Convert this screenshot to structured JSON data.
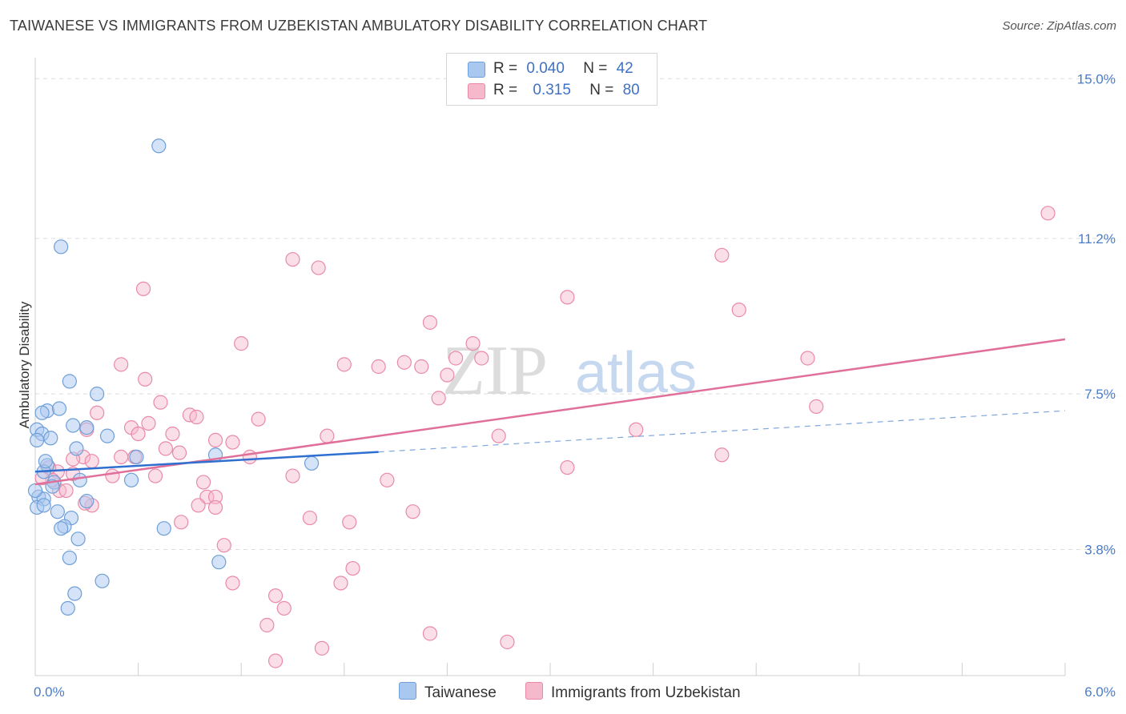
{
  "title": "TAIWANESE VS IMMIGRANTS FROM UZBEKISTAN AMBULATORY DISABILITY CORRELATION CHART",
  "source": "Source: ZipAtlas.com",
  "watermark": {
    "zip": "ZIP",
    "atlas": "atlas"
  },
  "colors": {
    "blue_fill": "#a9c8f0",
    "blue_stroke": "#6e9fd8",
    "blue_line": "#2f6fd0",
    "pink_fill": "#f6b9cc",
    "pink_stroke": "#e98aa8",
    "pink_line": "#e0709a",
    "tick_text": "#4a7cc9",
    "grid": "#dddddd"
  },
  "legend": {
    "rows": [
      {
        "r_label": "R =",
        "r_value": "0.040",
        "n_label": "N =",
        "n_value": "42"
      },
      {
        "r_label": "R =",
        "r_value": "0.315",
        "n_label": "N =",
        "n_value": "80"
      }
    ]
  },
  "bottom_legend": {
    "series1": "Taiwanese",
    "series2": "Immigrants from Uzbekistan"
  },
  "chart_data": {
    "type": "scatter",
    "title": "TAIWANESE VS IMMIGRANTS FROM UZBEKISTAN AMBULATORY DISABILITY CORRELATION CHART",
    "xlabel": "",
    "ylabel": "Ambulatory Disability",
    "xlim": [
      0,
      6.0
    ],
    "ylim": [
      0.8,
      15.5
    ],
    "y_ticks": [
      3.8,
      7.5,
      11.2,
      15.0
    ],
    "y_tick_labels": [
      "3.8%",
      "7.5%",
      "11.2%",
      "15.0%"
    ],
    "x_tick_labels": [
      "0.0%",
      "6.0%"
    ],
    "grid": true,
    "series": [
      {
        "name": "Taiwanese",
        "R": 0.04,
        "N": 42,
        "trend": {
          "x0": 0.0,
          "y0": 5.65,
          "x1": 2.0,
          "y1": 6.12,
          "dash_to_x": 6.0,
          "dash_to_y": 7.1
        },
        "points": [
          [
            0.72,
            13.4
          ],
          [
            0.15,
            11.0
          ],
          [
            0.2,
            7.8
          ],
          [
            0.36,
            7.5
          ],
          [
            0.07,
            7.1
          ],
          [
            0.14,
            7.15
          ],
          [
            0.04,
            7.05
          ],
          [
            0.01,
            6.65
          ],
          [
            0.04,
            6.55
          ],
          [
            0.22,
            6.75
          ],
          [
            0.09,
            6.45
          ],
          [
            0.42,
            6.5
          ],
          [
            0.24,
            6.2
          ],
          [
            0.3,
            6.7
          ],
          [
            0.01,
            6.4
          ],
          [
            0.59,
            6.0
          ],
          [
            1.05,
            6.05
          ],
          [
            1.61,
            5.85
          ],
          [
            0.07,
            5.8
          ],
          [
            0.05,
            5.65
          ],
          [
            0.11,
            5.4
          ],
          [
            0.26,
            5.45
          ],
          [
            0.56,
            5.45
          ],
          [
            0.1,
            5.3
          ],
          [
            0.02,
            5.05
          ],
          [
            0.05,
            5.0
          ],
          [
            0.3,
            4.95
          ],
          [
            0.01,
            4.8
          ],
          [
            0.05,
            4.85
          ],
          [
            0.13,
            4.7
          ],
          [
            0.21,
            4.55
          ],
          [
            0.17,
            4.35
          ],
          [
            0.15,
            4.3
          ],
          [
            0.75,
            4.3
          ],
          [
            0.25,
            4.05
          ],
          [
            0.2,
            3.6
          ],
          [
            1.07,
            3.5
          ],
          [
            0.39,
            3.05
          ],
          [
            0.23,
            2.75
          ],
          [
            0.19,
            2.4
          ],
          [
            0.0,
            5.2
          ],
          [
            0.06,
            5.9
          ]
        ]
      },
      {
        "name": "Immigrants from Uzbekistan",
        "R": 0.315,
        "N": 80,
        "trend": {
          "x0": 0.0,
          "y0": 5.35,
          "x1": 6.0,
          "y1": 8.8
        },
        "points": [
          [
            5.9,
            11.8
          ],
          [
            4.0,
            10.8
          ],
          [
            1.5,
            10.7
          ],
          [
            1.65,
            10.5
          ],
          [
            0.63,
            10.0
          ],
          [
            3.1,
            9.8
          ],
          [
            4.1,
            9.5
          ],
          [
            2.3,
            9.2
          ],
          [
            2.55,
            8.7
          ],
          [
            1.2,
            8.7
          ],
          [
            2.45,
            8.35
          ],
          [
            2.6,
            8.35
          ],
          [
            4.5,
            8.35
          ],
          [
            0.5,
            8.2
          ],
          [
            1.8,
            8.2
          ],
          [
            2.0,
            8.15
          ],
          [
            2.15,
            8.25
          ],
          [
            2.25,
            8.15
          ],
          [
            2.4,
            7.95
          ],
          [
            0.64,
            7.85
          ],
          [
            2.35,
            7.4
          ],
          [
            0.73,
            7.3
          ],
          [
            4.55,
            7.2
          ],
          [
            0.36,
            7.05
          ],
          [
            0.9,
            7.0
          ],
          [
            0.94,
            6.95
          ],
          [
            1.3,
            6.9
          ],
          [
            0.66,
            6.8
          ],
          [
            0.56,
            6.7
          ],
          [
            0.3,
            6.65
          ],
          [
            3.5,
            6.65
          ],
          [
            0.6,
            6.55
          ],
          [
            0.8,
            6.55
          ],
          [
            1.7,
            6.5
          ],
          [
            2.7,
            6.5
          ],
          [
            1.05,
            6.4
          ],
          [
            1.15,
            6.35
          ],
          [
            0.76,
            6.2
          ],
          [
            0.84,
            6.1
          ],
          [
            0.5,
            6.0
          ],
          [
            0.58,
            6.0
          ],
          [
            0.28,
            6.0
          ],
          [
            1.25,
            6.0
          ],
          [
            4.0,
            6.05
          ],
          [
            0.33,
            5.9
          ],
          [
            0.22,
            5.95
          ],
          [
            0.13,
            5.65
          ],
          [
            0.45,
            5.55
          ],
          [
            0.7,
            5.55
          ],
          [
            1.5,
            5.55
          ],
          [
            0.1,
            5.45
          ],
          [
            0.98,
            5.4
          ],
          [
            2.05,
            5.45
          ],
          [
            3.1,
            5.75
          ],
          [
            0.14,
            5.2
          ],
          [
            0.18,
            5.2
          ],
          [
            1.0,
            5.05
          ],
          [
            1.05,
            5.05
          ],
          [
            0.33,
            4.85
          ],
          [
            1.05,
            4.8
          ],
          [
            2.2,
            4.7
          ],
          [
            1.6,
            4.55
          ],
          [
            0.85,
            4.45
          ],
          [
            1.83,
            4.45
          ],
          [
            1.1,
            3.9
          ],
          [
            1.85,
            3.35
          ],
          [
            1.15,
            3.0
          ],
          [
            1.78,
            3.0
          ],
          [
            1.4,
            2.7
          ],
          [
            1.45,
            2.4
          ],
          [
            1.35,
            2.0
          ],
          [
            2.3,
            1.8
          ],
          [
            2.75,
            1.6
          ],
          [
            1.67,
            1.45
          ],
          [
            1.4,
            1.15
          ],
          [
            0.04,
            5.5
          ],
          [
            0.22,
            5.6
          ],
          [
            0.08,
            5.75
          ],
          [
            0.95,
            4.85
          ],
          [
            0.29,
            4.9
          ]
        ]
      }
    ]
  }
}
